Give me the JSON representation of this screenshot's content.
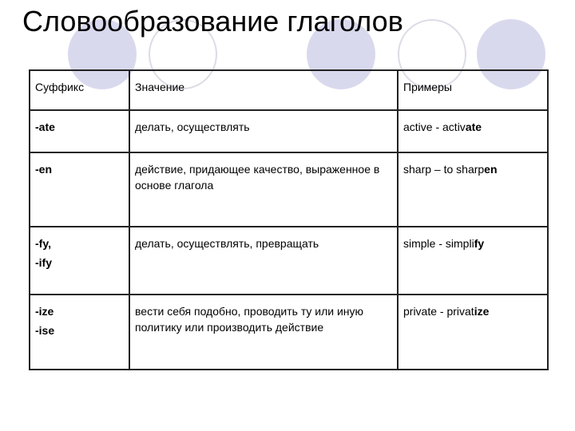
{
  "title": "Словообразование глаголов",
  "table": {
    "headers": [
      "Суффикс",
      "Значение",
      "Примеры"
    ],
    "rows": [
      {
        "suffix": [
          "-ate"
        ],
        "meaning": "делать, осуществлять",
        "example_base": "active - activ",
        "example_suffix": "ate"
      },
      {
        "suffix": [
          "-en"
        ],
        "meaning": "действие, придающее качество, выраженное в основе глагола",
        "example_base": "sharp – to sharp",
        "example_suffix": "en"
      },
      {
        "suffix": [
          "-fy,",
          "-ify"
        ],
        "meaning": "делать, осуществлять, превращать",
        "example_base": "simple - simpli",
        "example_suffix": "fy"
      },
      {
        "suffix": [
          "-ize",
          "-ise"
        ],
        "meaning": "вести себя подобно, проводить ту или иную политику или производить действие",
        "example_base": "private - privat",
        "example_suffix": "ize"
      }
    ]
  },
  "colors": {
    "circle_fill": "#d9d9ee",
    "circle_outline": "#dcdce6"
  }
}
